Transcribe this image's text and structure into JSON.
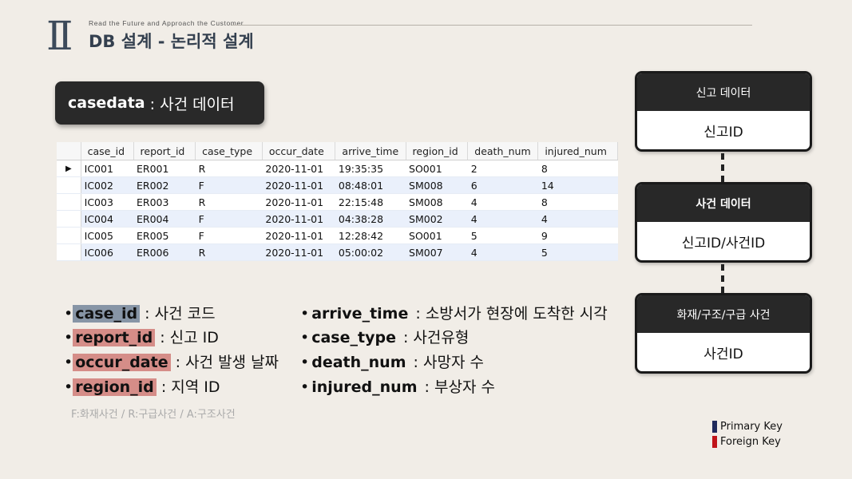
{
  "header": {
    "roman": "II",
    "tagline": "Read the Future and Approach the Customer",
    "title": "DB 설계 - 논리적 설계"
  },
  "table_box": {
    "name": "casedata",
    "desc": " : 사건 데이터"
  },
  "grid": {
    "columns": [
      "case_id",
      "report_id",
      "case_type",
      "occur_date",
      "arrive_time",
      "region_id",
      "death_num",
      "injured_num"
    ],
    "rows": [
      [
        "IC001",
        "ER001",
        "R",
        "2020-11-01",
        "19:35:35",
        "SO001",
        "2",
        "8"
      ],
      [
        "IC002",
        "ER002",
        "F",
        "2020-11-01",
        "08:48:01",
        "SM008",
        "6",
        "14"
      ],
      [
        "IC003",
        "ER003",
        "R",
        "2020-11-01",
        "22:15:48",
        "SM008",
        "4",
        "8"
      ],
      [
        "IC004",
        "ER004",
        "F",
        "2020-11-01",
        "04:38:28",
        "SM002",
        "4",
        "4"
      ],
      [
        "IC005",
        "ER005",
        "F",
        "2020-11-01",
        "12:28:42",
        "SO001",
        "5",
        "9"
      ],
      [
        "IC006",
        "ER006",
        "R",
        "2020-11-01",
        "05:00:02",
        "SM007",
        "4",
        "5"
      ]
    ],
    "current_row_marker": "▶"
  },
  "bullets_left": [
    {
      "key": "case_id",
      "type": "pk",
      "desc": " : 사건 코드"
    },
    {
      "key": "report_id",
      "type": "fk",
      "desc": " : 신고 ID"
    },
    {
      "key": "occur_date",
      "type": "fk",
      "desc": " : 사건 발생 날짜"
    },
    {
      "key": "region_id",
      "type": "fk",
      "desc": " : 지역 ID"
    }
  ],
  "bullets_right": [
    {
      "key": "arrive_time",
      "desc": " : 소방서가 현장에 도착한 시각"
    },
    {
      "key": "case_type",
      "desc": " : 사건유형"
    },
    {
      "key": "death_num",
      "desc": " : 사망자 수"
    },
    {
      "key": "injured_num",
      "desc": " : 부상자 수"
    }
  ],
  "bullet_glyph": "•",
  "note": "F:화재사건 / R:구급사건 / A:구조사건",
  "erd": [
    {
      "header": "신고 데이터",
      "body": "신고ID"
    },
    {
      "header": "사건 데이터",
      "body": "신고ID/사건ID"
    },
    {
      "header": "화재/구조/구급 사건",
      "body": "사건ID"
    }
  ],
  "legend": [
    {
      "label": "Primary Key",
      "color": "#1f2a5c"
    },
    {
      "label": "Foreign Key",
      "color": "#c0141a"
    }
  ]
}
